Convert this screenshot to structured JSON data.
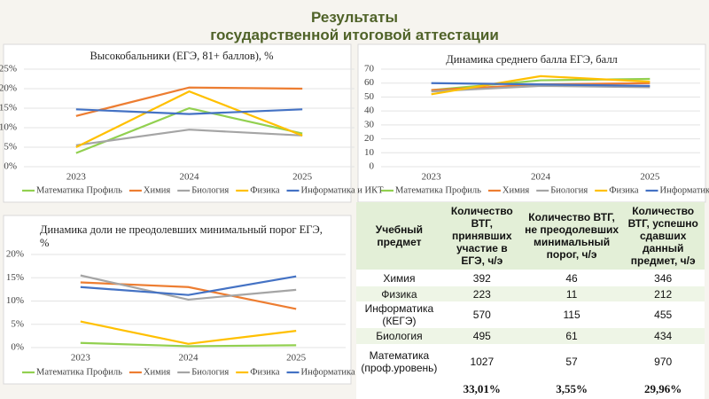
{
  "header": {
    "title": [
      "Результаты",
      "государственной итоговой аттестации"
    ]
  },
  "chart_data": [
    {
      "type": "line",
      "title": "Высокобальники (ЕГЭ, 81+ баллов), %",
      "categories": [
        "2023",
        "2024",
        "2025"
      ],
      "ylim": [
        0,
        25
      ],
      "yticks": [
        {
          "value": 0,
          "label": "0%"
        },
        {
          "value": 5,
          "label": "5%"
        },
        {
          "value": 10,
          "label": "10%"
        },
        {
          "value": 15,
          "label": "15%"
        },
        {
          "value": 20,
          "label": "20%"
        },
        {
          "value": 25,
          "label": "25%"
        }
      ],
      "grid": true,
      "series": [
        {
          "name": "Математика Профиль",
          "color": "#92d050",
          "values": [
            3.5,
            15,
            8.5
          ]
        },
        {
          "name": "Химия",
          "color": "#ed7d31",
          "values": [
            13,
            20.3,
            20
          ]
        },
        {
          "name": "Биология",
          "color": "#a5a5a5",
          "values": [
            5.5,
            9.5,
            8
          ]
        },
        {
          "name": "Физика",
          "color": "#ffc000",
          "values": [
            5,
            19.3,
            8
          ]
        },
        {
          "name": "Информатика и ИКТ",
          "color": "#4472c4",
          "values": [
            14.7,
            13.5,
            14.7
          ]
        }
      ]
    },
    {
      "type": "line",
      "title": "Динамика среднего балла ЕГЭ, балл",
      "categories": [
        "2023",
        "2024",
        "2025"
      ],
      "ylim": [
        0,
        70
      ],
      "yticks": [
        0,
        10,
        20,
        30,
        40,
        50,
        60,
        70
      ],
      "grid": true,
      "series": [
        {
          "name": "Математика Профиль",
          "color": "#92d050",
          "values": [
            55,
            62,
            63
          ]
        },
        {
          "name": "Химия",
          "color": "#ed7d31",
          "values": [
            55,
            59,
            60
          ]
        },
        {
          "name": "Биология",
          "color": "#a5a5a5",
          "values": [
            54,
            58,
            57
          ]
        },
        {
          "name": "Физика",
          "color": "#ffc000",
          "values": [
            52,
            65,
            61
          ]
        },
        {
          "name": "Информатика и ИКТ",
          "color": "#4472c4",
          "values": [
            60,
            59,
            58
          ]
        }
      ]
    },
    {
      "type": "line",
      "title": "Динамика доли не преодолевших минимальный порог ЕГЭ, %",
      "categories": [
        "2023",
        "2024",
        "2025"
      ],
      "ylim": [
        0,
        20
      ],
      "yticks": [
        {
          "value": 0,
          "label": "0%"
        },
        {
          "value": 5,
          "label": "5%"
        },
        {
          "value": 10,
          "label": "10%"
        },
        {
          "value": 15,
          "label": "15%"
        },
        {
          "value": 20,
          "label": "20%"
        }
      ],
      "grid": true,
      "series": [
        {
          "name": "Математика Профиль",
          "color": "#92d050",
          "values": [
            1,
            0.3,
            0.5
          ]
        },
        {
          "name": "Химия",
          "color": "#ed7d31",
          "values": [
            14,
            13,
            8.3
          ]
        },
        {
          "name": "Биология",
          "color": "#a5a5a5",
          "values": [
            15.5,
            10.3,
            12.4
          ]
        },
        {
          "name": "Физика",
          "color": "#ffc000",
          "values": [
            5.6,
            0.8,
            3.6
          ]
        },
        {
          "name": "Информатика и ИКТ",
          "color": "#4472c4",
          "values": [
            13,
            11.3,
            15.3
          ]
        }
      ]
    }
  ],
  "table": {
    "header": [
      "Учебный предмет",
      "Количество ВТГ, принявших участие в ЕГЭ, ч/э",
      "Количество ВТГ, не преодолевших минимальный порог, ч/э",
      "Количество ВТГ, успешно сдавших данный предмет, ч/э"
    ],
    "rows": [
      [
        "Химия",
        "392",
        "46",
        "346"
      ],
      [
        "Физика",
        "223",
        "11",
        "212"
      ],
      [
        "Информатика (КЕГЭ)",
        "570",
        "115",
        "455"
      ],
      [
        "Биология",
        "495",
        "61",
        "434"
      ],
      [
        "Математика (проф.уровень)",
        "1027",
        "57",
        "970"
      ]
    ],
    "footer": [
      "33,01%",
      "3,55%",
      "29,96%"
    ]
  }
}
